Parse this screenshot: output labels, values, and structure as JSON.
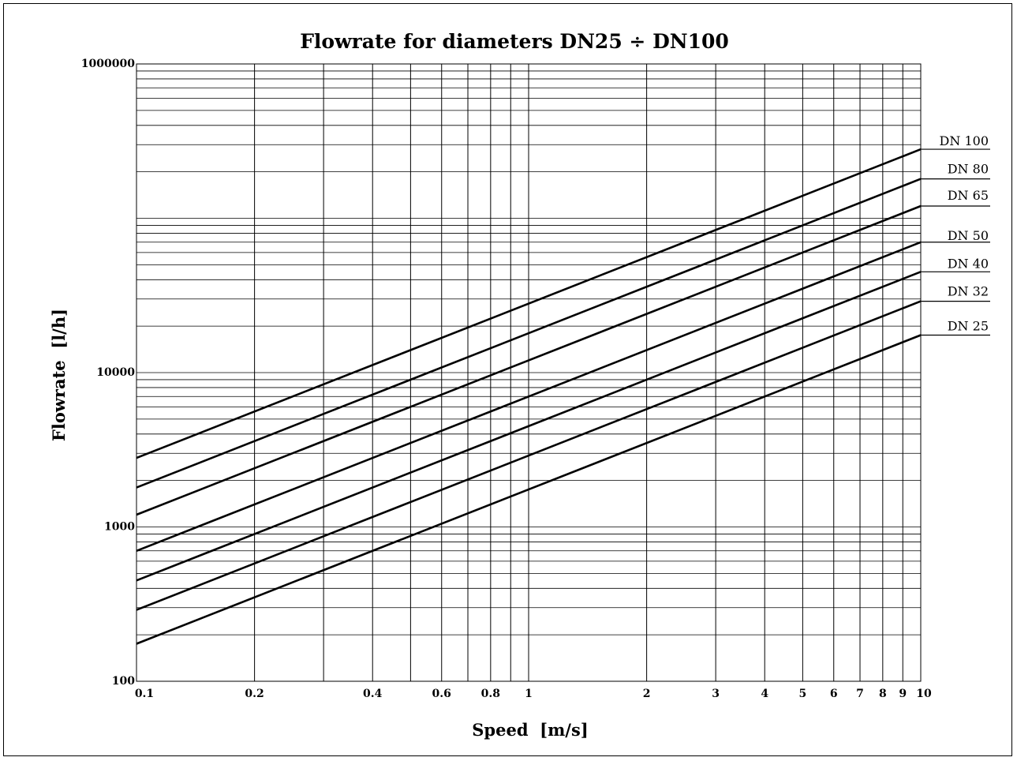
{
  "chart_data": {
    "type": "line",
    "title": "Flowrate for diameters DN25 ÷ DN100",
    "xlabel": "Speed  [m/s]",
    "ylabel": "Flowrate  [l/h]",
    "xscale": "log",
    "yscale": "log",
    "xlim": [
      0.1,
      10
    ],
    "ylim": [
      100,
      1000000
    ],
    "grid": true,
    "legend": "labels at right end of each line",
    "x_ticks": [
      "0.1",
      "0.2",
      "0.4",
      "0.6",
      "0.8",
      "1",
      "2",
      "3",
      "4",
      "5",
      "6",
      "7",
      "8",
      "9",
      "10"
    ],
    "y_ticks": [
      "100",
      "1000",
      "10000",
      "1000000"
    ],
    "series": [
      {
        "name": "DN 100",
        "x": [
          0.1,
          10
        ],
        "y": [
          2800,
          280000
        ]
      },
      {
        "name": "DN 80",
        "x": [
          0.1,
          10
        ],
        "y": [
          1800,
          180000
        ]
      },
      {
        "name": "DN 65",
        "x": [
          0.1,
          10
        ],
        "y": [
          1200,
          120000
        ]
      },
      {
        "name": "DN 50",
        "x": [
          0.1,
          10
        ],
        "y": [
          700,
          70000
        ]
      },
      {
        "name": "DN 40",
        "x": [
          0.1,
          10
        ],
        "y": [
          450,
          45000
        ]
      },
      {
        "name": "DN 32",
        "x": [
          0.1,
          10
        ],
        "y": [
          290,
          29000
        ]
      },
      {
        "name": "DN 25",
        "x": [
          0.1,
          10
        ],
        "y": [
          175,
          17500
        ]
      }
    ]
  }
}
